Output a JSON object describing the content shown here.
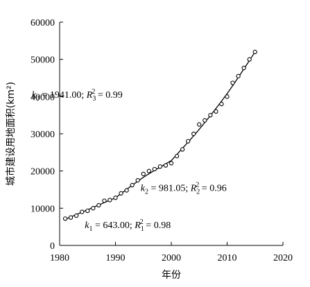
{
  "chart_data": {
    "type": "scatter",
    "xlabel": "年份",
    "ylabel": "城市建设用地面积(km²)",
    "xlim": [
      1980,
      2020
    ],
    "ylim": [
      0,
      60000
    ],
    "xticks": [
      1980,
      1990,
      2000,
      2010,
      2020
    ],
    "yticks": [
      0,
      10000,
      20000,
      30000,
      40000,
      50000,
      60000
    ],
    "grid": false,
    "series": [
      {
        "marker": "open-circle",
        "x": [
          1981,
          1982,
          1983,
          1984,
          1985,
          1986,
          1987,
          1988,
          1989,
          1990,
          1991,
          1992,
          1993,
          1994,
          1995,
          1996,
          1997,
          1998,
          1999,
          2000,
          2001,
          2002,
          2003,
          2004,
          2005,
          2006,
          2007,
          2008,
          2009,
          2010,
          2011,
          2012,
          2013,
          2014,
          2015
        ],
        "y": [
          7200,
          7500,
          8000,
          9000,
          9300,
          10000,
          10800,
          12000,
          12200,
          12800,
          14000,
          14800,
          16200,
          17500,
          19200,
          20000,
          20500,
          21200,
          21500,
          22100,
          24000,
          25800,
          28000,
          30000,
          32500,
          33600,
          35000,
          36000,
          38000,
          40000,
          43700,
          45500,
          47700,
          50000,
          52000
        ]
      }
    ],
    "fit_segments": [
      {
        "x_range": [
          1981,
          1990
        ],
        "x": [
          1981,
          1990
        ],
        "y": [
          7000,
          12800
        ]
      },
      {
        "x_range": [
          1990,
          2000
        ],
        "x": [
          1990,
          1995,
          2000
        ],
        "y": [
          12800,
          18300,
          22800
        ]
      },
      {
        "x_range": [
          2000,
          2015
        ],
        "x": [
          2000,
          2005,
          2010,
          2015
        ],
        "y": [
          22800,
          31200,
          40800,
          52000
        ]
      }
    ],
    "annotations": [
      {
        "id": "k3",
        "prefix": "k",
        "sub": "3",
        "mid": " = 1941.00; ",
        "r": "R",
        "rsub": "3",
        "rsup": "2",
        "tail": " = 0.99",
        "x": 1975,
        "y": 39700
      },
      {
        "id": "k2",
        "prefix": "k",
        "sub": "2",
        "mid": " = 981.05; ",
        "r": "R",
        "rsub": "2",
        "rsup": "2",
        "tail": " = 0.96",
        "x": 1994.5,
        "y": 14600
      },
      {
        "id": "k1",
        "prefix": "k",
        "sub": "1",
        "mid": " = 643.00; ",
        "r": "R",
        "rsub": "1",
        "rsup": "2",
        "tail": " = 0.98",
        "x": 1984.5,
        "y": 4700
      }
    ]
  }
}
